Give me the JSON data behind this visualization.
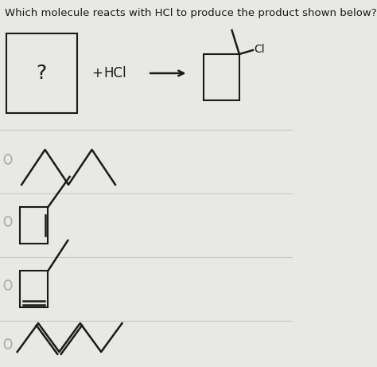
{
  "title": "Which molecule reacts with HCl to produce the product shown below?",
  "bg_color": "#e8e8e4",
  "line_color": "#1a1a1a",
  "text_color": "#1a1a1a",
  "radio_color": "#aaaaaa",
  "title_fontsize": 9.5,
  "label_fontsize": 10.5
}
